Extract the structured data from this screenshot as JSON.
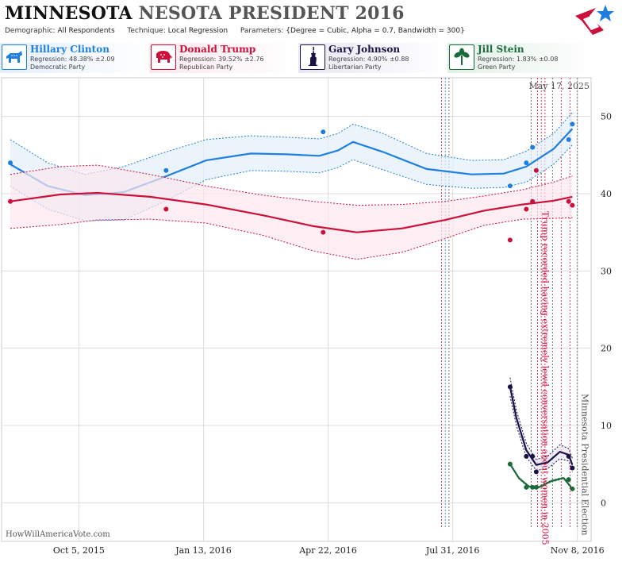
{
  "header": {
    "title_main": "MINNESOTA",
    "title_rest": "NESOTA PRESIDENT 2016",
    "demographic_label": "Demographic:",
    "demographic_value": "All Respondents",
    "technique_label": "Technique:",
    "technique_value": "Local Regression",
    "parameters_label": "Parameters:",
    "parameters_value": "{Degree = Cubic, Alpha = 0.7, Bandwidth = 300}"
  },
  "candidates": [
    {
      "name": "Hillary Clinton",
      "regression": "Regression: 48.38% ±2.09",
      "party": "Democratic Party",
      "color": "#1f7fe0",
      "icon": "donkey-icon"
    },
    {
      "name": "Donald Trump",
      "regression": "Regression: 39.52% ±2.76",
      "party": "Republican Party",
      "color": "#cc0f3b",
      "icon": "elephant-icon"
    },
    {
      "name": "Gary Johnson",
      "regression": "Regression: 4.90% ±0.88",
      "party": "Libertarian Party",
      "color": "#1a1248",
      "icon": "liberty-statue-icon"
    },
    {
      "name": "Jill Stein",
      "regression": "Regression: 1.83% ±0.08",
      "party": "Green Party",
      "color": "#1a6b3a",
      "icon": "leaf-icon"
    }
  ],
  "watermark": "HowWillAmericaVote.com",
  "date_stamp": "May 17, 2025",
  "chart_data": {
    "type": "line",
    "x_tick_labels": [
      "Oct 5, 2015",
      "Jan 13, 2016",
      "Apr 22, 2016",
      "Jul 31, 2016",
      "Nov 8, 2016"
    ],
    "x_tick_dates": [
      "2015-10-05",
      "2016-01-13",
      "2016-04-22",
      "2016-07-31",
      "2016-11-08"
    ],
    "xlim": [
      "2015-08-04",
      "2016-11-19"
    ],
    "ylim": [
      -5,
      55
    ],
    "y_ticks": [
      0,
      10,
      20,
      30,
      40,
      50
    ],
    "grid": true,
    "annotations": [
      {
        "label": "Trump recorded having extremely lewd conversation about women in 2005",
        "date": "2016-10-07",
        "color": "#cc0f3b"
      },
      {
        "label": "Minnesota Presidential Election",
        "date": "2016-11-08",
        "color": "#555555"
      }
    ],
    "event_lines": [
      {
        "date": "2016-07-22",
        "color": "#cc0f3b"
      },
      {
        "date": "2016-07-25",
        "color": "#1f7fe0"
      },
      {
        "date": "2016-07-28",
        "color": "#555555"
      },
      {
        "date": "2016-10-02",
        "color": "#555555"
      },
      {
        "date": "2016-10-07",
        "color": "#cc0f3b"
      },
      {
        "date": "2016-10-10",
        "color": "#cc0f3b"
      },
      {
        "date": "2016-10-13",
        "color": "#cc0f3b"
      },
      {
        "date": "2016-10-19",
        "color": "#555555"
      },
      {
        "date": "2016-10-26",
        "color": "#cc0f3b"
      },
      {
        "date": "2016-11-02",
        "color": "#cc0f3b"
      },
      {
        "date": "2016-11-08",
        "color": "#555555"
      }
    ],
    "series": [
      {
        "name": "Hillary Clinton",
        "color": "#1f7fe0",
        "fill": "#e3eefa",
        "points": [
          [
            "2015-08-11",
            44
          ],
          [
            "2015-12-14",
            43
          ],
          [
            "2016-04-18",
            48
          ],
          [
            "2016-09-15",
            41
          ],
          [
            "2016-09-28",
            44
          ],
          [
            "2016-10-03",
            46
          ],
          [
            "2016-11-01",
            47
          ],
          [
            "2016-11-04",
            49
          ]
        ],
        "trend": [
          [
            "2015-08-11",
            43.8
          ],
          [
            "2015-09-10",
            41
          ],
          [
            "2015-10-10",
            39.8
          ],
          [
            "2015-11-10",
            40.2
          ],
          [
            "2015-12-10",
            42
          ],
          [
            "2016-01-15",
            44.3
          ],
          [
            "2016-02-20",
            45.2
          ],
          [
            "2016-03-20",
            45.1
          ],
          [
            "2016-04-15",
            44.9
          ],
          [
            "2016-04-30",
            45.6
          ],
          [
            "2016-05-12",
            46.7
          ],
          [
            "2016-06-05",
            45.4
          ],
          [
            "2016-07-10",
            43.2
          ],
          [
            "2016-08-15",
            42.5
          ],
          [
            "2016-09-10",
            42.6
          ],
          [
            "2016-09-28",
            43.5
          ],
          [
            "2016-10-20",
            45.8
          ],
          [
            "2016-11-04",
            48.4
          ]
        ],
        "upper": [
          [
            "2015-08-11",
            47
          ],
          [
            "2015-09-10",
            44
          ],
          [
            "2015-10-10",
            42.5
          ],
          [
            "2015-11-10",
            43.5
          ],
          [
            "2015-12-10",
            45.2
          ],
          [
            "2016-01-15",
            47
          ],
          [
            "2016-02-20",
            47.5
          ],
          [
            "2016-03-20",
            47.3
          ],
          [
            "2016-04-15",
            47.1
          ],
          [
            "2016-04-30",
            47.8
          ],
          [
            "2016-05-12",
            49
          ],
          [
            "2016-06-05",
            47.8
          ],
          [
            "2016-07-10",
            45.2
          ],
          [
            "2016-08-15",
            44.3
          ],
          [
            "2016-09-10",
            44.4
          ],
          [
            "2016-09-28",
            45.5
          ],
          [
            "2016-10-20",
            47.8
          ],
          [
            "2016-11-04",
            50.5
          ]
        ],
        "lower": [
          [
            "2015-08-11",
            41
          ],
          [
            "2015-09-10",
            38
          ],
          [
            "2015-10-10",
            36.5
          ],
          [
            "2015-11-10",
            36.6
          ],
          [
            "2015-12-10",
            38.8
          ],
          [
            "2016-01-15",
            41.8
          ],
          [
            "2016-02-20",
            43
          ],
          [
            "2016-03-20",
            42.9
          ],
          [
            "2016-04-15",
            42.7
          ],
          [
            "2016-04-30",
            43.4
          ],
          [
            "2016-05-12",
            44.4
          ],
          [
            "2016-06-05",
            43.1
          ],
          [
            "2016-07-10",
            41.2
          ],
          [
            "2016-08-15",
            40.7
          ],
          [
            "2016-09-10",
            40.8
          ],
          [
            "2016-09-28",
            41.5
          ],
          [
            "2016-10-20",
            43.8
          ],
          [
            "2016-11-04",
            46.3
          ]
        ]
      },
      {
        "name": "Donald Trump",
        "color": "#cc0f3b",
        "fill": "#fbe7ec",
        "points": [
          [
            "2015-08-11",
            39
          ],
          [
            "2015-12-14",
            38
          ],
          [
            "2016-04-18",
            35
          ],
          [
            "2016-09-15",
            34
          ],
          [
            "2016-09-28",
            38
          ],
          [
            "2016-10-03",
            39
          ],
          [
            "2016-10-06",
            43
          ],
          [
            "2016-11-01",
            39
          ],
          [
            "2016-11-04",
            38.5
          ]
        ],
        "trend": [
          [
            "2015-08-11",
            39
          ],
          [
            "2015-09-20",
            39.9
          ],
          [
            "2015-10-20",
            40.1
          ],
          [
            "2015-12-01",
            39.6
          ],
          [
            "2016-01-15",
            38.6
          ],
          [
            "2016-03-01",
            37.2
          ],
          [
            "2016-04-10",
            35.8
          ],
          [
            "2016-05-15",
            35
          ],
          [
            "2016-06-20",
            35.5
          ],
          [
            "2016-07-25",
            36.6
          ],
          [
            "2016-08-25",
            37.8
          ],
          [
            "2016-09-25",
            38.6
          ],
          [
            "2016-10-20",
            39.1
          ],
          [
            "2016-11-04",
            39.6
          ]
        ],
        "upper": [
          [
            "2015-08-11",
            42.5
          ],
          [
            "2015-09-20",
            43.5
          ],
          [
            "2015-10-20",
            43.7
          ],
          [
            "2015-12-01",
            42.5
          ],
          [
            "2016-01-15",
            41
          ],
          [
            "2016-03-01",
            39.8
          ],
          [
            "2016-04-10",
            39
          ],
          [
            "2016-05-15",
            38.5
          ],
          [
            "2016-06-20",
            38.6
          ],
          [
            "2016-07-25",
            39
          ],
          [
            "2016-08-25",
            39.7
          ],
          [
            "2016-09-25",
            40.5
          ],
          [
            "2016-10-20",
            41.5
          ],
          [
            "2016-11-04",
            42.3
          ]
        ],
        "lower": [
          [
            "2015-08-11",
            35.5
          ],
          [
            "2015-09-20",
            36
          ],
          [
            "2015-10-20",
            36.6
          ],
          [
            "2015-12-01",
            36.7
          ],
          [
            "2016-01-15",
            36.2
          ],
          [
            "2016-03-01",
            34.6
          ],
          [
            "2016-04-10",
            32.6
          ],
          [
            "2016-05-15",
            31.5
          ],
          [
            "2016-06-20",
            32.4
          ],
          [
            "2016-07-25",
            34.2
          ],
          [
            "2016-08-25",
            35.9
          ],
          [
            "2016-09-25",
            36.7
          ],
          [
            "2016-10-20",
            36.8
          ],
          [
            "2016-11-04",
            36.9
          ]
        ]
      },
      {
        "name": "Gary Johnson",
        "color": "#1a1248",
        "fill": "#e8e6f2",
        "points": [
          [
            "2016-09-15",
            15
          ],
          [
            "2016-09-28",
            6
          ],
          [
            "2016-10-03",
            6
          ],
          [
            "2016-10-06",
            4
          ],
          [
            "2016-11-01",
            6
          ],
          [
            "2016-11-04",
            4.5
          ]
        ],
        "trend": [
          [
            "2016-09-15",
            15
          ],
          [
            "2016-09-20",
            11
          ],
          [
            "2016-09-28",
            6.8
          ],
          [
            "2016-10-06",
            4.9
          ],
          [
            "2016-10-15",
            5.2
          ],
          [
            "2016-10-25",
            6.6
          ],
          [
            "2016-11-01",
            6.2
          ],
          [
            "2016-11-04",
            4.9
          ]
        ],
        "upper": [
          [
            "2016-09-15",
            16.2
          ],
          [
            "2016-09-20",
            12
          ],
          [
            "2016-09-28",
            7.7
          ],
          [
            "2016-10-06",
            5.6
          ],
          [
            "2016-10-15",
            6
          ],
          [
            "2016-10-25",
            7.5
          ],
          [
            "2016-11-01",
            7
          ],
          [
            "2016-11-04",
            5.8
          ]
        ],
        "lower": [
          [
            "2016-09-15",
            13.8
          ],
          [
            "2016-09-20",
            10
          ],
          [
            "2016-09-28",
            5.9
          ],
          [
            "2016-10-06",
            4.2
          ],
          [
            "2016-10-15",
            4.4
          ],
          [
            "2016-10-25",
            5.7
          ],
          [
            "2016-11-01",
            5.4
          ],
          [
            "2016-11-04",
            4.0
          ]
        ]
      },
      {
        "name": "Jill Stein",
        "color": "#1a6b3a",
        "fill": "#e2f0e6",
        "points": [
          [
            "2016-09-15",
            5
          ],
          [
            "2016-09-28",
            2
          ],
          [
            "2016-10-03",
            2
          ],
          [
            "2016-10-06",
            2
          ],
          [
            "2016-11-01",
            3
          ],
          [
            "2016-11-04",
            1.8
          ]
        ],
        "trend": [
          [
            "2016-09-15",
            5
          ],
          [
            "2016-09-22",
            3.2
          ],
          [
            "2016-09-30",
            2.1
          ],
          [
            "2016-10-08",
            2.0
          ],
          [
            "2016-10-18",
            2.8
          ],
          [
            "2016-10-28",
            3.2
          ],
          [
            "2016-11-04",
            1.8
          ]
        ],
        "upper": [
          [
            "2016-09-15",
            5.1
          ],
          [
            "2016-09-22",
            3.3
          ],
          [
            "2016-09-30",
            2.2
          ],
          [
            "2016-10-08",
            2.1
          ],
          [
            "2016-10-18",
            2.9
          ],
          [
            "2016-10-28",
            3.3
          ],
          [
            "2016-11-04",
            1.9
          ]
        ],
        "lower": [
          [
            "2016-09-15",
            4.9
          ],
          [
            "2016-09-22",
            3.1
          ],
          [
            "2016-09-30",
            2.0
          ],
          [
            "2016-10-08",
            1.9
          ],
          [
            "2016-10-18",
            2.7
          ],
          [
            "2016-10-28",
            3.1
          ],
          [
            "2016-11-04",
            1.7
          ]
        ]
      }
    ]
  }
}
